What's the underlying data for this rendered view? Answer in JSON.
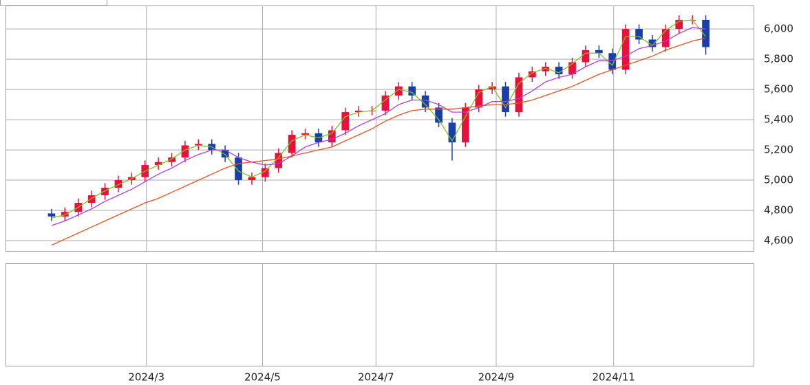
{
  "chart_data": {
    "type": "candlestick",
    "categories": [
      null,
      null,
      null,
      null,
      null,
      null,
      null,
      null,
      null,
      null,
      null,
      null,
      null,
      null,
      null,
      null,
      null,
      null,
      null,
      null,
      null,
      null,
      null,
      null,
      null,
      null,
      null,
      null,
      null,
      null,
      null,
      null,
      null,
      null,
      null,
      null,
      null,
      null,
      null,
      null,
      null,
      null,
      null,
      null,
      null,
      null,
      null,
      null,
      null,
      null
    ],
    "open": [
      4780,
      4760,
      4790,
      4850,
      4900,
      4950,
      5000,
      5020,
      5100,
      5120,
      5150,
      5230,
      5240,
      5200,
      5150,
      5000,
      5020,
      5080,
      5180,
      5300,
      5310,
      5250,
      5330,
      5450,
      5460,
      5460,
      5560,
      5620,
      5560,
      5480,
      5380,
      5250,
      5480,
      5600,
      5620,
      5450,
      5680,
      5720,
      5750,
      5700,
      5780,
      5860,
      5840,
      5730,
      6000,
      5930,
      5880,
      6000,
      6060,
      6060
    ],
    "high": [
      4810,
      4820,
      4880,
      4930,
      4980,
      5030,
      5050,
      5130,
      5150,
      5180,
      5260,
      5270,
      5270,
      5230,
      5180,
      5050,
      5110,
      5210,
      5330,
      5340,
      5340,
      5360,
      5480,
      5490,
      5490,
      5590,
      5650,
      5650,
      5590,
      5510,
      5410,
      5510,
      5630,
      5650,
      5650,
      5710,
      5750,
      5780,
      5780,
      5810,
      5890,
      5890,
      5870,
      6030,
      6030,
      5960,
      6030,
      6090,
      6090,
      6090
    ],
    "low": [
      4730,
      4730,
      4760,
      4820,
      4870,
      4920,
      4970,
      4990,
      5070,
      5090,
      5120,
      5200,
      5170,
      5120,
      4970,
      4970,
      4990,
      5050,
      5150,
      5270,
      5220,
      5220,
      5300,
      5420,
      5430,
      5430,
      5530,
      5530,
      5450,
      5350,
      5130,
      5220,
      5450,
      5570,
      5420,
      5420,
      5650,
      5690,
      5670,
      5670,
      5750,
      5810,
      5700,
      5700,
      5900,
      5850,
      5850,
      5970,
      6030,
      5830
    ],
    "close": [
      4760,
      4790,
      4850,
      4900,
      4950,
      5000,
      5020,
      5100,
      5120,
      5150,
      5230,
      5240,
      5200,
      5150,
      5000,
      5020,
      5080,
      5180,
      5300,
      5310,
      5250,
      5330,
      5450,
      5460,
      5460,
      5560,
      5620,
      5560,
      5480,
      5380,
      5250,
      5480,
      5600,
      5620,
      5450,
      5680,
      5720,
      5750,
      5700,
      5780,
      5860,
      5840,
      5730,
      6000,
      5930,
      5880,
      6000,
      6060,
      6060,
      5880
    ],
    "up_color": "#e8103c",
    "down_color": "#1a3ea8",
    "series": [
      {
        "color": "#7fc31c",
        "values": [
          4750,
          4770,
          4820,
          4880,
          4930,
          4970,
          5010,
          5060,
          5100,
          5140,
          5200,
          5230,
          5220,
          5170,
          5060,
          5020,
          5060,
          5150,
          5260,
          5300,
          5280,
          5310,
          5420,
          5450,
          5460,
          5530,
          5600,
          5580,
          5500,
          5400,
          5260,
          5420,
          5580,
          5620,
          5480,
          5640,
          5710,
          5740,
          5710,
          5770,
          5840,
          5840,
          5760,
          5950,
          5950,
          5890,
          5990,
          6050,
          6060,
          5950
        ]
      },
      {
        "color": "#b03ce8",
        "values": [
          4700,
          4730,
          4770,
          4810,
          4860,
          4900,
          4940,
          4990,
          5040,
          5080,
          5130,
          5170,
          5200,
          5200,
          5150,
          5120,
          5100,
          5110,
          5160,
          5220,
          5250,
          5270,
          5310,
          5360,
          5400,
          5440,
          5500,
          5530,
          5530,
          5500,
          5450,
          5450,
          5480,
          5520,
          5520,
          5540,
          5590,
          5650,
          5680,
          5700,
          5750,
          5790,
          5790,
          5820,
          5870,
          5890,
          5920,
          5970,
          6010,
          6000
        ]
      },
      {
        "color": "#f0501e",
        "values": [
          4570,
          4610,
          4650,
          4690,
          4730,
          4770,
          4810,
          4850,
          4880,
          4920,
          4960,
          5000,
          5040,
          5080,
          5110,
          5120,
          5130,
          5140,
          5160,
          5180,
          5200,
          5220,
          5260,
          5300,
          5340,
          5390,
          5430,
          5460,
          5470,
          5470,
          5470,
          5480,
          5490,
          5500,
          5500,
          5510,
          5530,
          5560,
          5590,
          5620,
          5660,
          5700,
          5730,
          5760,
          5790,
          5820,
          5860,
          5890,
          5920,
          5940
        ]
      }
    ],
    "xlim": [
      -3.45,
      52.58
    ],
    "xticks": [
      {
        "value": 7.1,
        "label": "2024/3"
      },
      {
        "value": 15.8,
        "label": "2024/5"
      },
      {
        "value": 24.3,
        "label": "2024/7"
      },
      {
        "value": 33.3,
        "label": "2024/9"
      },
      {
        "value": 42.1,
        "label": "2024/11"
      }
    ],
    "ylim": [
      4532,
      6155
    ],
    "yticks": [
      {
        "value": 4600,
        "label": "4,600"
      },
      {
        "value": 4800,
        "label": "4,800"
      },
      {
        "value": 5000,
        "label": "5,000"
      },
      {
        "value": 5200,
        "label": "5,200"
      },
      {
        "value": 5400,
        "label": "5,400"
      },
      {
        "value": 5600,
        "label": "5,600"
      },
      {
        "value": 5800,
        "label": "5,800"
      },
      {
        "value": 6000,
        "label": "6,000"
      }
    ],
    "grid": true
  }
}
